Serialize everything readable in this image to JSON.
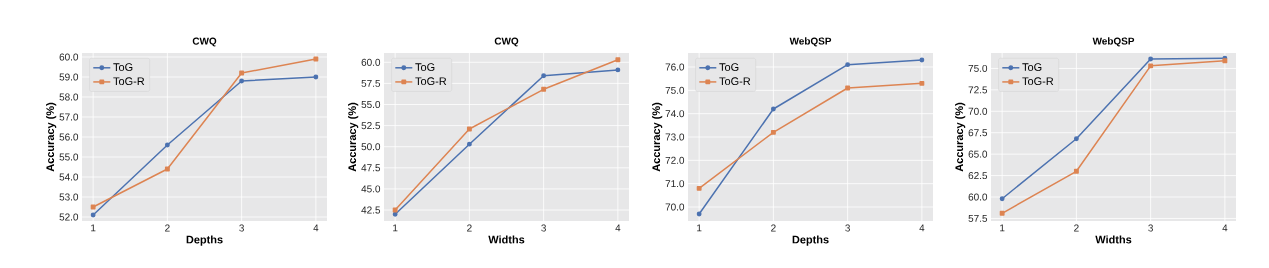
{
  "chart_data": [
    {
      "type": "line",
      "title": "CWQ",
      "xlabel": "Depths",
      "ylabel": "Accuracy (%)",
      "x": [
        1,
        2,
        3,
        4
      ],
      "xlim": [
        0.85,
        4.15
      ],
      "xticks": [
        1,
        2,
        3,
        4
      ],
      "ylim": [
        51.8,
        60.2
      ],
      "yticks": [
        {
          "value": 52,
          "label": "52.0"
        },
        {
          "value": 53,
          "label": "53.0"
        },
        {
          "value": 54,
          "label": "54.0"
        },
        {
          "value": 55,
          "label": "55.0"
        },
        {
          "value": 56,
          "label": "56.0"
        },
        {
          "value": 57,
          "label": "57.0"
        },
        {
          "value": 58,
          "label": "58.0"
        },
        {
          "value": 59,
          "label": "59.0"
        },
        {
          "value": 60,
          "label": "60.0"
        }
      ],
      "grid": true,
      "legend": "top left",
      "line_style": "solid",
      "series": [
        {
          "name": "ToG",
          "color": "#4c72b0",
          "marker": "circle",
          "values": [
            52.1,
            55.6,
            58.8,
            59.0
          ]
        },
        {
          "name": "ToG-R",
          "color": "#dd8452",
          "marker": "square",
          "values": [
            52.5,
            54.4,
            59.2,
            59.9
          ]
        }
      ]
    },
    {
      "type": "line",
      "title": "CWQ",
      "xlabel": "Widths",
      "ylabel": "Accuracy (%)",
      "x": [
        1,
        2,
        3,
        4
      ],
      "xlim": [
        0.85,
        4.15
      ],
      "xticks": [
        1,
        2,
        3,
        4
      ],
      "ylim": [
        41.2,
        61.1
      ],
      "yticks": [
        {
          "value": 42.5,
          "label": "42.5"
        },
        {
          "value": 45,
          "label": "45.0"
        },
        {
          "value": 47.5,
          "label": "47.5"
        },
        {
          "value": 50,
          "label": "50.0"
        },
        {
          "value": 52.5,
          "label": "52.5"
        },
        {
          "value": 55,
          "label": "55.0"
        },
        {
          "value": 57.5,
          "label": "57.5"
        },
        {
          "value": 60,
          "label": "60.0"
        }
      ],
      "grid": true,
      "legend": "top left",
      "line_style": "solid",
      "series": [
        {
          "name": "ToG",
          "color": "#4c72b0",
          "marker": "circle",
          "values": [
            42.0,
            50.3,
            58.4,
            59.1
          ]
        },
        {
          "name": "ToG-R",
          "color": "#dd8452",
          "marker": "square",
          "values": [
            42.5,
            52.1,
            56.8,
            60.3
          ]
        }
      ]
    },
    {
      "type": "line",
      "title": "WebQSP",
      "xlabel": "Depths",
      "ylabel": "Accuracy (%)",
      "x": [
        1,
        2,
        3,
        4
      ],
      "xlim": [
        0.85,
        4.15
      ],
      "xticks": [
        1,
        2,
        3,
        4
      ],
      "ylim": [
        69.4,
        76.6
      ],
      "yticks": [
        {
          "value": 70,
          "label": "70.0"
        },
        {
          "value": 71,
          "label": "71.0"
        },
        {
          "value": 72,
          "label": "72.0"
        },
        {
          "value": 73,
          "label": "73.0"
        },
        {
          "value": 74,
          "label": "74.0"
        },
        {
          "value": 75,
          "label": "75.0"
        },
        {
          "value": 76,
          "label": "76.0"
        }
      ],
      "grid": true,
      "legend": "top left",
      "line_style": "solid",
      "series": [
        {
          "name": "ToG",
          "color": "#4c72b0",
          "marker": "circle",
          "values": [
            69.7,
            74.2,
            76.1,
            76.3
          ]
        },
        {
          "name": "ToG-R",
          "color": "#dd8452",
          "marker": "square",
          "values": [
            70.8,
            73.2,
            75.1,
            75.3
          ]
        }
      ]
    },
    {
      "type": "line",
      "title": "WebQSP",
      "xlabel": "Widths",
      "ylabel": "Accuracy (%)",
      "x": [
        1,
        2,
        3,
        4
      ],
      "xlim": [
        0.85,
        4.15
      ],
      "xticks": [
        1,
        2,
        3,
        4
      ],
      "ylim": [
        57.2,
        76.8
      ],
      "yticks": [
        {
          "value": 57.5,
          "label": "57.5"
        },
        {
          "value": 60,
          "label": "60.0"
        },
        {
          "value": 62.5,
          "label": "62.5"
        },
        {
          "value": 65,
          "label": "65.0"
        },
        {
          "value": 67.5,
          "label": "67.5"
        },
        {
          "value": 70,
          "label": "70.0"
        },
        {
          "value": 72.5,
          "label": "72.5"
        },
        {
          "value": 75,
          "label": "75.0"
        }
      ],
      "grid": true,
      "legend": "top left",
      "line_style": "solid",
      "series": [
        {
          "name": "ToG",
          "color": "#4c72b0",
          "marker": "circle",
          "values": [
            59.8,
            66.8,
            76.1,
            76.2
          ]
        },
        {
          "name": "ToG-R",
          "color": "#dd8452",
          "marker": "square",
          "values": [
            58.1,
            63.0,
            75.3,
            75.9
          ]
        }
      ]
    }
  ]
}
